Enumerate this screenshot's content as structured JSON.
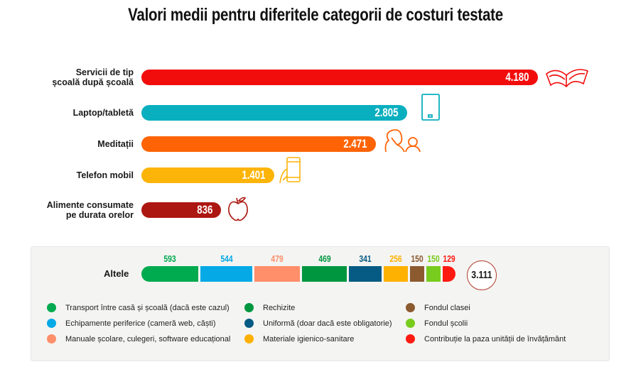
{
  "chart_data": {
    "type": "bar",
    "orientation": "horizontal",
    "title": "Valori medii pentru diferitele categorii de costuri testate",
    "categories": [
      "Servicii de tip școală după școală",
      "Laptop/tabletă",
      "Meditații",
      "Telefon mobil",
      "Alimente consumate pe durata orelor"
    ],
    "label_lines": [
      [
        "Servicii de tip",
        "școală după școală"
      ],
      [
        "Laptop/tabletă"
      ],
      [
        "Meditații"
      ],
      [
        "Telefon mobil"
      ],
      [
        "Alimente consumate",
        "pe durata orelor"
      ]
    ],
    "values": [
      4180,
      2805,
      2471,
      1401,
      836
    ],
    "value_labels": [
      "4.180",
      "2.805",
      "2.471",
      "1.401",
      "836"
    ],
    "colors": [
      "#f20d0d",
      "#0aafbf",
      "#fe6406",
      "#fdb409",
      "#ad1711"
    ],
    "icons": [
      "book-icon",
      "tablet-icon",
      "tutor-icon",
      "phone-icon",
      "apple-icon"
    ],
    "stacked": {
      "label": "Altele",
      "total": 3111,
      "total_label": "3.111",
      "segments": [
        {
          "name": "Transport între casă și școală (dacă este cazul)",
          "value": 593,
          "label": "593",
          "color": "#00aa4f"
        },
        {
          "name": "Echipamente periferice (cameră web, căști)",
          "value": 544,
          "label": "544",
          "color": "#04a9e6"
        },
        {
          "name": "Manuale școlare, culegeri, software educațional",
          "value": 479,
          "label": "479",
          "color": "#ff8e6a"
        },
        {
          "name": "Rechizite",
          "value": 469,
          "label": "469",
          "color": "#009640"
        },
        {
          "name": "Uniformă (doar dacă este obligatorie)",
          "value": 341,
          "label": "341",
          "color": "#055b83"
        },
        {
          "name": "Materiale igienico-sanitare",
          "value": 256,
          "label": "256",
          "color": "#feb100"
        },
        {
          "name": "Fondul clasei",
          "value": 150,
          "label": "150",
          "color": "#8b5a2f"
        },
        {
          "name": "Fondul școlii",
          "value": 150,
          "label": "150",
          "color": "#78cc1d"
        },
        {
          "name": "Contribuție la paza unității de învățământ",
          "value": 129,
          "label": "129",
          "color": "#fe1a11"
        }
      ]
    },
    "legend": {
      "placement": "bottom",
      "columns": [
        [
          "Transport între casă și școală (dacă este cazul)",
          "Echipamente periferice (cameră web, căști)",
          "Manuale școlare, culegeri, software educațional"
        ],
        [
          "Rechizite",
          "Uniformă (doar dacă este obligatorie)",
          "Materiale igienico-sanitare"
        ],
        [
          "Fondul clasei",
          "Fondul școlii",
          "Contribuție la paza unității de învățământ"
        ]
      ]
    }
  }
}
